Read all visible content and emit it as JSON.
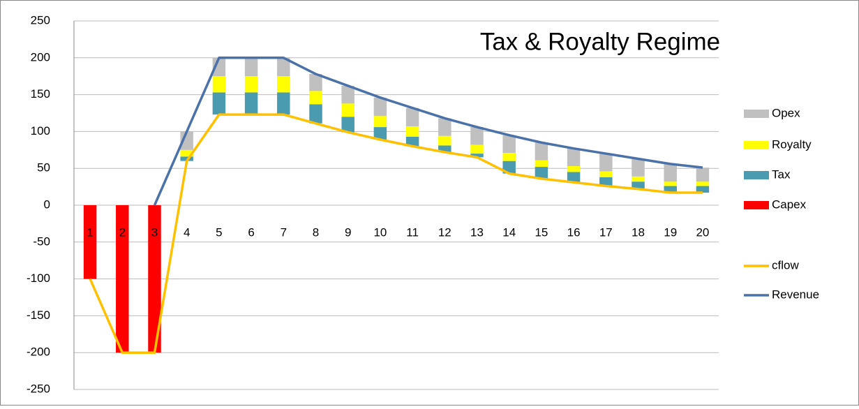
{
  "chart_data": {
    "type": "bar",
    "stacked": true,
    "title": "Tax & Royalty Regime",
    "categories": [
      "1",
      "2",
      "3",
      "4",
      "5",
      "6",
      "7",
      "8",
      "9",
      "10",
      "11",
      "12",
      "13",
      "14",
      "15",
      "16",
      "17",
      "18",
      "19",
      "20"
    ],
    "series": [
      {
        "name": "Opex",
        "type": "bar",
        "color": "#c0c0c0",
        "values": [
          null,
          null,
          null,
          25,
          25,
          25,
          25,
          23,
          24,
          25,
          25,
          24,
          24,
          24,
          24,
          24,
          24,
          24,
          24,
          19
        ]
      },
      {
        "name": "Royalty",
        "type": "bar",
        "color": "#ffff00",
        "values": [
          null,
          null,
          null,
          9,
          22,
          22,
          22,
          18,
          18,
          15,
          14,
          13,
          12,
          11,
          9,
          8,
          8,
          7,
          6,
          6
        ]
      },
      {
        "name": "Tax",
        "type": "bar",
        "color": "#4a9bb0",
        "values": [
          null,
          null,
          null,
          6,
          30,
          30,
          30,
          26,
          21,
          17,
          13,
          9,
          5,
          17,
          16,
          14,
          12,
          10,
          9,
          9
        ]
      },
      {
        "name": "Capex",
        "type": "bar",
        "color": "#ff0000",
        "values": [
          -100,
          -200,
          -200,
          null,
          null,
          null,
          null,
          null,
          null,
          null,
          null,
          null,
          null,
          null,
          null,
          null,
          null,
          null,
          null,
          null
        ]
      },
      {
        "name": "cflow",
        "type": "line",
        "color": "#ffc000",
        "values": [
          -100,
          -200,
          -200,
          60,
          123,
          123,
          123,
          111,
          99,
          89,
          80,
          72,
          65,
          43,
          36,
          31,
          26,
          22,
          17,
          17
        ]
      },
      {
        "name": "Revenue",
        "type": "line",
        "color": "#4a72a8",
        "values": [
          null,
          null,
          0,
          100,
          200,
          200,
          200,
          178,
          162,
          146,
          132,
          118,
          106,
          95,
          85,
          77,
          70,
          63,
          56,
          51
        ]
      }
    ],
    "ylim": [
      -250,
      250
    ],
    "yticks": [
      -250,
      -200,
      -150,
      -100,
      -50,
      0,
      50,
      100,
      150,
      200,
      250
    ],
    "grid": true,
    "legend": "right"
  }
}
